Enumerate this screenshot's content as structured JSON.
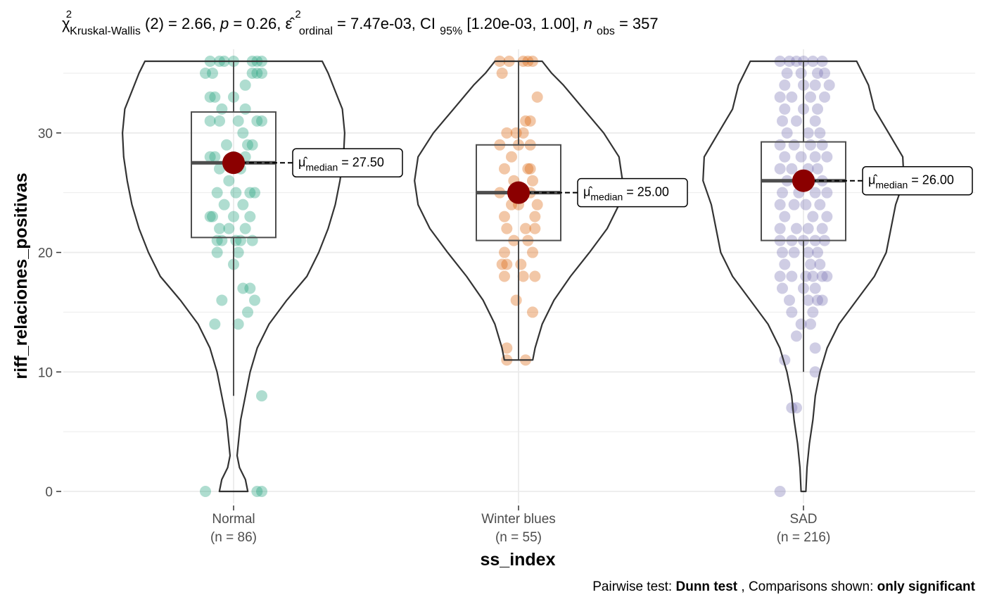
{
  "chart_data": {
    "type": "violin",
    "subtitle": {
      "stat_symbol": "χ",
      "stat_sup": "2",
      "stat_sub": "Kruskal-Wallis",
      "stat_df": "(2) = 2.66, ",
      "p_symbol": "p",
      "p_value": " = 0.26, ",
      "effect_symbol": "ε̂",
      "effect_sup": "2",
      "effect_sub": "ordinal",
      "effect_value": " = 7.47e-03, CI",
      "ci_sub": "95%",
      "ci_value": " [1.20e-03, 1.00], ",
      "n_symbol": "n",
      "n_sub": "obs",
      "n_value": " = 357"
    },
    "xlabel": "ss_index",
    "ylabel": "riff_relaciones_positivas",
    "ylim": [
      -1,
      37
    ],
    "yticks": [
      0,
      10,
      20,
      30
    ],
    "grid": true,
    "caption": {
      "part1": "Pairwise test: ",
      "part2": "Dunn test",
      "part3": ", Comparisons shown: ",
      "part4": "only significant"
    },
    "groups": [
      {
        "name": "Normal",
        "n_label": "(n = 86)",
        "color": "#1b9e77",
        "median": 27.5,
        "q1": 21.25,
        "q3": 31.75,
        "whisker_low": 8,
        "whisker_high": 36,
        "min": 0,
        "max": 36,
        "median_label_symbol": "μ̂",
        "median_label_sub": "median",
        "median_label_value": " = 27.50",
        "density": [
          [
            0,
            0.12
          ],
          [
            1,
            0.1
          ],
          [
            2,
            0.05
          ],
          [
            3,
            0.03
          ],
          [
            4,
            0.04
          ],
          [
            5,
            0.05
          ],
          [
            6,
            0.06
          ],
          [
            8,
            0.1
          ],
          [
            10,
            0.14
          ],
          [
            12,
            0.2
          ],
          [
            14,
            0.3
          ],
          [
            16,
            0.45
          ],
          [
            18,
            0.62
          ],
          [
            20,
            0.72
          ],
          [
            22,
            0.8
          ],
          [
            24,
            0.86
          ],
          [
            26,
            0.9
          ],
          [
            28,
            0.93
          ],
          [
            30,
            0.94
          ],
          [
            32,
            0.92
          ],
          [
            34,
            0.84
          ],
          [
            35,
            0.8
          ],
          [
            36,
            0.75
          ]
        ],
        "points": [
          [
            -0.12,
            0
          ],
          [
            0.1,
            0
          ],
          [
            0.12,
            0
          ],
          [
            0.12,
            8
          ],
          [
            -0.08,
            14
          ],
          [
            0.02,
            14
          ],
          [
            -0.05,
            16
          ],
          [
            0.09,
            16
          ],
          [
            0.04,
            17
          ],
          [
            0.07,
            17
          ],
          [
            0.06,
            15
          ],
          [
            0.0,
            19
          ],
          [
            -0.07,
            20
          ],
          [
            0.02,
            20
          ],
          [
            -0.05,
            21
          ],
          [
            -0.07,
            21
          ],
          [
            0.01,
            21
          ],
          [
            0.03,
            21
          ],
          [
            0.08,
            21
          ],
          [
            -0.02,
            22
          ],
          [
            -0.06,
            22
          ],
          [
            0.05,
            22
          ],
          [
            -0.1,
            23
          ],
          [
            0.0,
            23
          ],
          [
            0.07,
            23
          ],
          [
            -0.09,
            23
          ],
          [
            -0.04,
            24
          ],
          [
            0.04,
            24
          ],
          [
            -0.07,
            25
          ],
          [
            0.01,
            25
          ],
          [
            0.09,
            25
          ],
          [
            0.07,
            25
          ],
          [
            -0.02,
            26
          ],
          [
            0.03,
            27
          ],
          [
            -0.06,
            27
          ],
          [
            -0.1,
            28
          ],
          [
            0.0,
            28
          ],
          [
            -0.08,
            28
          ],
          [
            0.05,
            28
          ],
          [
            -0.03,
            29
          ],
          [
            0.06,
            29
          ],
          [
            0.08,
            29
          ],
          [
            0.04,
            30
          ],
          [
            -0.1,
            31
          ],
          [
            -0.06,
            31
          ],
          [
            0.02,
            31
          ],
          [
            0.1,
            31
          ],
          [
            0.12,
            31
          ],
          [
            -0.05,
            32
          ],
          [
            0.05,
            32
          ],
          [
            -0.08,
            33
          ],
          [
            -0.1,
            33
          ],
          [
            0.0,
            33
          ],
          [
            0.05,
            34
          ],
          [
            -0.12,
            35
          ],
          [
            -0.09,
            35
          ],
          [
            0.08,
            35
          ],
          [
            0.12,
            35
          ],
          [
            0.1,
            35
          ],
          [
            -0.06,
            36
          ],
          [
            -0.04,
            36
          ],
          [
            -0.1,
            36
          ],
          [
            0.0,
            36
          ],
          [
            0.08,
            36
          ],
          [
            0.1,
            36
          ],
          [
            0.12,
            36
          ]
        ]
      },
      {
        "name": "Winter blues",
        "n_label": "(n = 55)",
        "color": "#d95f02",
        "median": 25,
        "q1": 21,
        "q3": 29,
        "whisker_low": 11,
        "whisker_high": 36,
        "min": 11,
        "max": 36,
        "median_label_symbol": "μ̂",
        "median_label_sub": "median",
        "median_label_value": " = 25.00",
        "density": [
          [
            11,
            0.12
          ],
          [
            12,
            0.14
          ],
          [
            14,
            0.2
          ],
          [
            16,
            0.3
          ],
          [
            18,
            0.44
          ],
          [
            20,
            0.6
          ],
          [
            22,
            0.75
          ],
          [
            24,
            0.85
          ],
          [
            26,
            0.88
          ],
          [
            28,
            0.85
          ],
          [
            30,
            0.72
          ],
          [
            32,
            0.55
          ],
          [
            34,
            0.38
          ],
          [
            35,
            0.28
          ],
          [
            36,
            0.2
          ]
        ],
        "points": [
          [
            -0.05,
            11
          ],
          [
            0.03,
            11
          ],
          [
            -0.05,
            12
          ],
          [
            0.06,
            15
          ],
          [
            -0.01,
            16
          ],
          [
            -0.06,
            18
          ],
          [
            0.02,
            18
          ],
          [
            0.07,
            18
          ],
          [
            -0.07,
            19
          ],
          [
            -0.05,
            19
          ],
          [
            0.01,
            19
          ],
          [
            -0.06,
            20
          ],
          [
            0.06,
            20
          ],
          [
            -0.02,
            21
          ],
          [
            0.04,
            21
          ],
          [
            -0.05,
            22
          ],
          [
            0.03,
            22
          ],
          [
            0.07,
            22
          ],
          [
            -0.06,
            23
          ],
          [
            0.07,
            23
          ],
          [
            -0.03,
            24
          ],
          [
            0.0,
            24
          ],
          [
            0.08,
            24
          ],
          [
            -0.08,
            25
          ],
          [
            0.0,
            25
          ],
          [
            0.05,
            25
          ],
          [
            -0.02,
            26
          ],
          [
            0.06,
            26
          ],
          [
            -0.06,
            27
          ],
          [
            0.04,
            27
          ],
          [
            0.05,
            27
          ],
          [
            -0.03,
            28
          ],
          [
            -0.08,
            29
          ],
          [
            0.0,
            29
          ],
          [
            0.05,
            29
          ],
          [
            -0.05,
            30
          ],
          [
            -0.01,
            30
          ],
          [
            0.02,
            30
          ],
          [
            0.05,
            31
          ],
          [
            0.03,
            31
          ],
          [
            0.08,
            33
          ],
          [
            -0.07,
            35
          ],
          [
            -0.08,
            36
          ],
          [
            -0.04,
            36
          ],
          [
            0.02,
            36
          ],
          [
            0.04,
            36
          ],
          [
            0.06,
            36
          ]
        ]
      },
      {
        "name": "SAD",
        "n_label": "(n = 216)",
        "color": "#7570b3",
        "median": 26,
        "q1": 21,
        "q3": 29.25,
        "whisker_low": 10,
        "whisker_high": 36,
        "min": 0,
        "max": 36,
        "median_label_symbol": "μ̂",
        "median_label_sub": "median",
        "median_label_value": " = 26.00",
        "density": [
          [
            0,
            0.02
          ],
          [
            2,
            0.03
          ],
          [
            4,
            0.05
          ],
          [
            6,
            0.08
          ],
          [
            8,
            0.1
          ],
          [
            10,
            0.14
          ],
          [
            12,
            0.2
          ],
          [
            14,
            0.3
          ],
          [
            16,
            0.45
          ],
          [
            18,
            0.6
          ],
          [
            20,
            0.7
          ],
          [
            22,
            0.74
          ],
          [
            24,
            0.78
          ],
          [
            26,
            0.85
          ],
          [
            28,
            0.84
          ],
          [
            30,
            0.72
          ],
          [
            32,
            0.6
          ],
          [
            34,
            0.55
          ],
          [
            35,
            0.5
          ],
          [
            36,
            0.45
          ]
        ],
        "points": [
          [
            -0.1,
            0
          ],
          [
            -0.05,
            7
          ],
          [
            -0.03,
            7
          ],
          [
            -0.08,
            11
          ],
          [
            0.05,
            10
          ],
          [
            0.05,
            12
          ],
          [
            -0.03,
            13
          ],
          [
            -0.01,
            14
          ],
          [
            0.03,
            14
          ],
          [
            -0.05,
            15
          ],
          [
            0.04,
            15
          ],
          [
            -0.06,
            16
          ],
          [
            0.02,
            16
          ],
          [
            0.06,
            16
          ],
          [
            0.08,
            16
          ],
          [
            -0.09,
            17
          ],
          [
            0.0,
            17
          ],
          [
            0.05,
            17
          ],
          [
            -0.1,
            18
          ],
          [
            -0.05,
            18
          ],
          [
            0.01,
            18
          ],
          [
            0.04,
            18
          ],
          [
            0.08,
            18
          ],
          [
            0.1,
            18
          ],
          [
            -0.08,
            19
          ],
          [
            0.03,
            19
          ],
          [
            0.07,
            19
          ],
          [
            -0.09,
            20
          ],
          [
            -0.04,
            20
          ],
          [
            0.02,
            20
          ],
          [
            0.06,
            20
          ],
          [
            -0.1,
            21
          ],
          [
            -0.05,
            21
          ],
          [
            0.0,
            21
          ],
          [
            0.05,
            21
          ],
          [
            0.09,
            21
          ],
          [
            -0.1,
            22
          ],
          [
            -0.03,
            22
          ],
          [
            0.02,
            22
          ],
          [
            0.08,
            22
          ],
          [
            -0.08,
            23
          ],
          [
            0.04,
            23
          ],
          [
            0.1,
            23
          ],
          [
            -0.1,
            24
          ],
          [
            -0.04,
            24
          ],
          [
            0.01,
            24
          ],
          [
            0.07,
            24
          ],
          [
            -0.09,
            25
          ],
          [
            -0.02,
            25
          ],
          [
            0.05,
            25
          ],
          [
            0.1,
            25
          ],
          [
            -0.07,
            26
          ],
          [
            0.03,
            26
          ],
          [
            0.08,
            26
          ],
          [
            -0.1,
            27
          ],
          [
            -0.05,
            27
          ],
          [
            0.02,
            27
          ],
          [
            0.06,
            27
          ],
          [
            -0.08,
            28
          ],
          [
            -0.01,
            28
          ],
          [
            0.05,
            28
          ],
          [
            0.1,
            28
          ],
          [
            -0.1,
            29
          ],
          [
            -0.04,
            29
          ],
          [
            0.03,
            29
          ],
          [
            0.08,
            29
          ],
          [
            -0.07,
            30
          ],
          [
            0.02,
            30
          ],
          [
            0.07,
            30
          ],
          [
            -0.09,
            31
          ],
          [
            -0.03,
            31
          ],
          [
            0.05,
            31
          ],
          [
            -0.08,
            32
          ],
          [
            0.0,
            32
          ],
          [
            0.06,
            32
          ],
          [
            -0.1,
            33
          ],
          [
            -0.05,
            33
          ],
          [
            0.03,
            33
          ],
          [
            0.09,
            33
          ],
          [
            -0.08,
            34
          ],
          [
            0.0,
            34
          ],
          [
            0.05,
            34
          ],
          [
            0.11,
            34
          ],
          [
            -0.07,
            35
          ],
          [
            -0.01,
            35
          ],
          [
            0.06,
            35
          ],
          [
            0.09,
            35
          ],
          [
            -0.1,
            36
          ],
          [
            -0.06,
            36
          ],
          [
            -0.03,
            36
          ],
          [
            0.0,
            36
          ],
          [
            0.04,
            36
          ],
          [
            0.08,
            36
          ]
        ]
      }
    ]
  }
}
